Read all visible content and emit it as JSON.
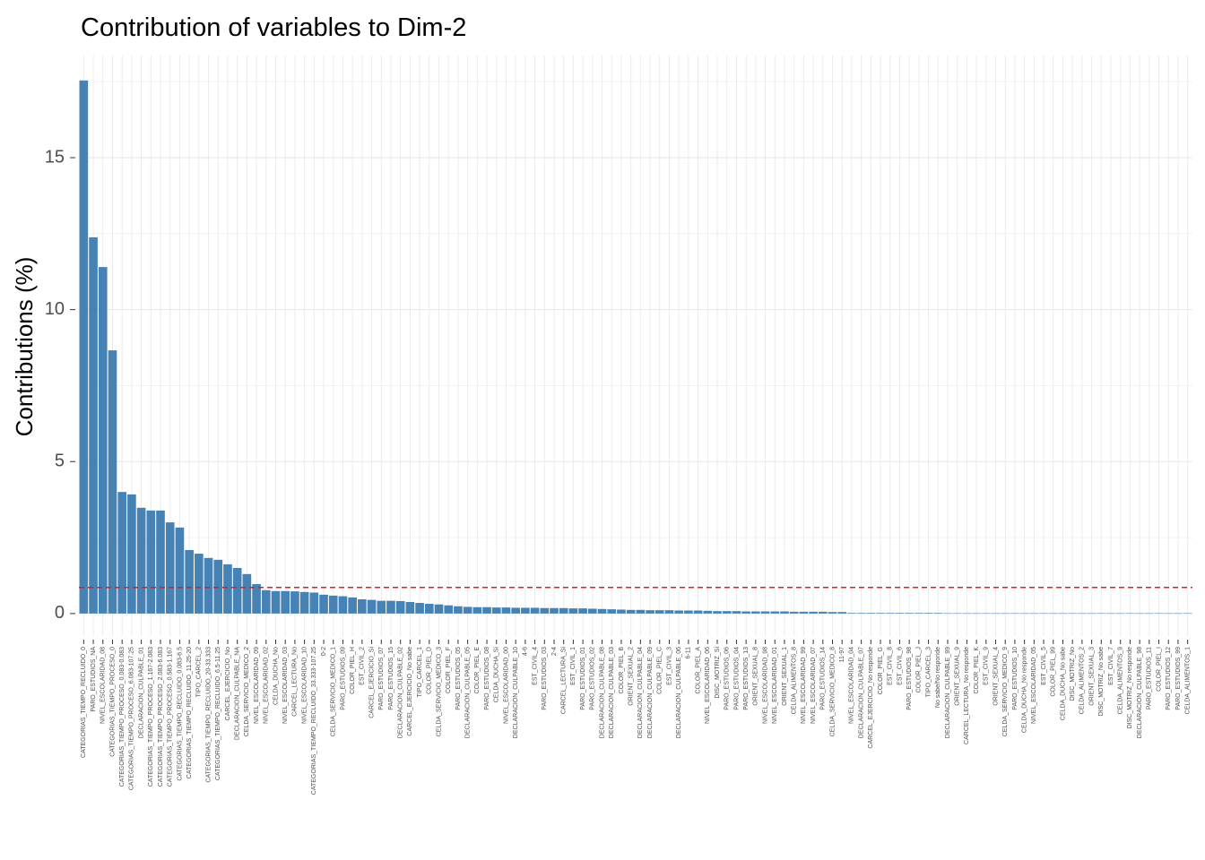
{
  "chart_data": {
    "type": "bar",
    "title": "Contribution of variables to Dim-2",
    "y_label": "Contributions (%)",
    "categories": [
      "CATEGORIAS_TIEMPO_RECLUIDO_0",
      "PARO_ESTUDIOS_NA",
      "NIVEL_ESCOLARIDAD_08",
      "CATEGORIAS_TIEMPO_PROCESO_0",
      "CATEGORIAS_TIEMPO_PROCESO_0.083-0.083",
      "CATEGORIAS_TIEMPO_PROCESO_6.083-107.25",
      "DECLARACION_CULPABLE_01",
      "CATEGORIAS_TIEMPO_PROCESO_1.167-2.083",
      "CATEGORIAS_TIEMPO_PROCESO_2.083-6.083",
      "CATEGORIAS_TIEMPO_PROCESO_0.583-1.167",
      "CATEGORIAS_TIEMPO_RECLUIDO_0.083-6.5",
      "CATEGORIAS_TIEMPO_RECLUIDO_11.25-20",
      "TIPO_CARCEL_2",
      "CATEGORIAS_TIEMPO_RECLUIDO_20-33.333",
      "CATEGORIAS_TIEMPO_RECLUIDO_6.5-11.25",
      "CARCEL_EJERCICIO_No",
      "DECLARACION_CULPABLE_NA",
      "CELDA_SERVICIO_MEDICO_2",
      "NIVEL_ESCOLARIDAD_09",
      "NIVEL_ESCOLARIDAD_02",
      "CELDA_DUCHA_No",
      "NIVEL_ESCOLARIDAD_03",
      "CARCEL_LECTURA_No",
      "NIVEL_ESCOLARIDAD_10",
      "CATEGORIAS_TIEMPO_RECLUIDO_33.333-107.25",
      "0-2",
      "CELDA_SERVICIO_MEDICO_1",
      "PARO_ESTUDIOS_09",
      "COLOR_PIEL_H",
      "EST_CIVIL_2",
      "CARCEL_EJERCICIO_Si",
      "PARO_ESTUDIOS_07",
      "PARO_ESTUDIOS_15",
      "DECLARACION_CULPABLE_02",
      "CARCEL_EJERCICIO_No sabe",
      "TIPO_CARCEL_1",
      "COLOR_PIEL_D",
      "CELDA_SERVICIO_MEDICO_3",
      "COLOR_PIEL_F",
      "PARO_ESTUDIOS_05",
      "DECLARACION_CULPABLE_05",
      "COLOR_PIEL_E",
      "PARO_ESTUDIOS_08",
      "CELDA_DUCHA_Si",
      "NIVEL_ESCOLARIDAD_00",
      "DECLARACION_CULPABLE_10",
      "4-6",
      "EST_CIVIL_4",
      "PARO_ESTUDIOS_03",
      "2-4",
      "CARCEL_LECTURA_Si",
      "EST_CIVIL_1",
      "PARO_ESTUDIOS_01",
      "PARO_ESTUDIOS_02",
      "DECLARACION_CULPABLE_08",
      "DECLARACION_CULPABLE_03",
      "COLOR_PIEL_B",
      "ORIENT_SEXUAL_2",
      "DECLARACION_CULPABLE_04",
      "DECLARACION_CULPABLE_09",
      "COLOR_PIEL_C",
      "EST_CIVIL_3",
      "DECLARACION_CULPABLE_06",
      "6-11",
      "COLOR_PIEL_A",
      "NIVEL_ESCOLARIDAD_06",
      "DISC_MOTRIZ_Si",
      "PARO_ESTUDIOS_06",
      "PARO_ESTUDIOS_04",
      "PARO_ESTUDIOS_13",
      "ORIENT_SEXUAL_8",
      "NIVEL_ESCOLARIDAD_98",
      "NIVEL_ESCOLARIDAD_01",
      "ORIENT_SEXUAL_1",
      "CELDA_ALIMENTOS_8",
      "NIVEL_ESCOLARIDAD_99",
      "NIVEL_ESCOLARIDAD_07",
      "PARO_ESTUDIOS_14",
      "CELDA_SERVICIO_MEDICO_8",
      "11-97",
      "NIVEL_ESCOLARIDAD_04",
      "DECLARACION_CULPABLE_07",
      "CARCEL_EJERCICIO_No responde",
      "COLOR_PIEL_G",
      "EST_CIVIL_8",
      "EST_CIVIL_6",
      "PARO_ESTUDIOS_98",
      "COLOR_PIEL_J",
      "TIPO_CARCEL_3",
      "No sabe/No responde",
      "DECLARACION_CULPABLE_99",
      "ORIENT_SEXUAL_9",
      "CARCEL_LECTURA_No responde",
      "COLOR_PIEL_K",
      "EST_CIVIL_9",
      "ORIENT_SEXUAL_4",
      "CELDA_SERVICIO_MEDICO_9",
      "PARO_ESTUDIOS_10",
      "CELDA_DUCHA_No responde",
      "NIVEL_ESCOLARIDAD_05",
      "EST_CIVIL_5",
      "COLOR_PIEL_99",
      "CELDA_DUCHA_No sabe",
      "DISC_MOTRIZ_No",
      "CELDA_ALIMENTOS_2",
      "ORIENT_SEXUAL_3",
      "DISC_MOTRIZ_No sabe",
      "EST_CIVIL_7",
      "CELDA_ALIMENTOS_9",
      "DISC_MOTRIZ_No responde",
      "DECLARACION_CULPABLE_98",
      "PARO_ESTUDIOS_11",
      "COLOR_PIEL_I",
      "PARO_ESTUDIOS_12",
      "PARO_ESTUDIOS_99",
      "CELDA_ALIMENTOS_1"
    ],
    "values": [
      17.54,
      12.38,
      11.4,
      8.66,
      4.0,
      3.92,
      3.48,
      3.39,
      3.39,
      3.0,
      2.83,
      2.09,
      1.97,
      1.83,
      1.77,
      1.62,
      1.5,
      1.3,
      0.97,
      0.77,
      0.74,
      0.74,
      0.73,
      0.71,
      0.69,
      0.62,
      0.59,
      0.57,
      0.53,
      0.47,
      0.45,
      0.42,
      0.42,
      0.41,
      0.38,
      0.35,
      0.32,
      0.3,
      0.27,
      0.24,
      0.22,
      0.21,
      0.21,
      0.2,
      0.2,
      0.19,
      0.19,
      0.19,
      0.18,
      0.18,
      0.18,
      0.17,
      0.17,
      0.16,
      0.15,
      0.14,
      0.13,
      0.12,
      0.12,
      0.11,
      0.11,
      0.11,
      0.1,
      0.1,
      0.1,
      0.09,
      0.08,
      0.08,
      0.08,
      0.07,
      0.07,
      0.07,
      0.07,
      0.07,
      0.06,
      0.06,
      0.06,
      0.06,
      0.05,
      0.05,
      0.02,
      0.02,
      0.02,
      0.02,
      0.02,
      0.02,
      0.02,
      0.02,
      0.02,
      0.02,
      0.01,
      0.01,
      0.01,
      0.01,
      0.01,
      0.01,
      0.01,
      0.01,
      0.01,
      0.01,
      0.01,
      0.01,
      0.01,
      0.01,
      0.01,
      0.01,
      0.01,
      0.01,
      0.01,
      0.01,
      0.01,
      0.01,
      0.01,
      0.01,
      0.01,
      0.01
    ],
    "color": "#4682b4",
    "reference_line": {
      "value": 0.86,
      "color": "#e41a1c"
    },
    "ylim": [
      -0.74,
      18.36
    ],
    "yticks": [
      0,
      5,
      10,
      15
    ],
    "grid": true
  }
}
